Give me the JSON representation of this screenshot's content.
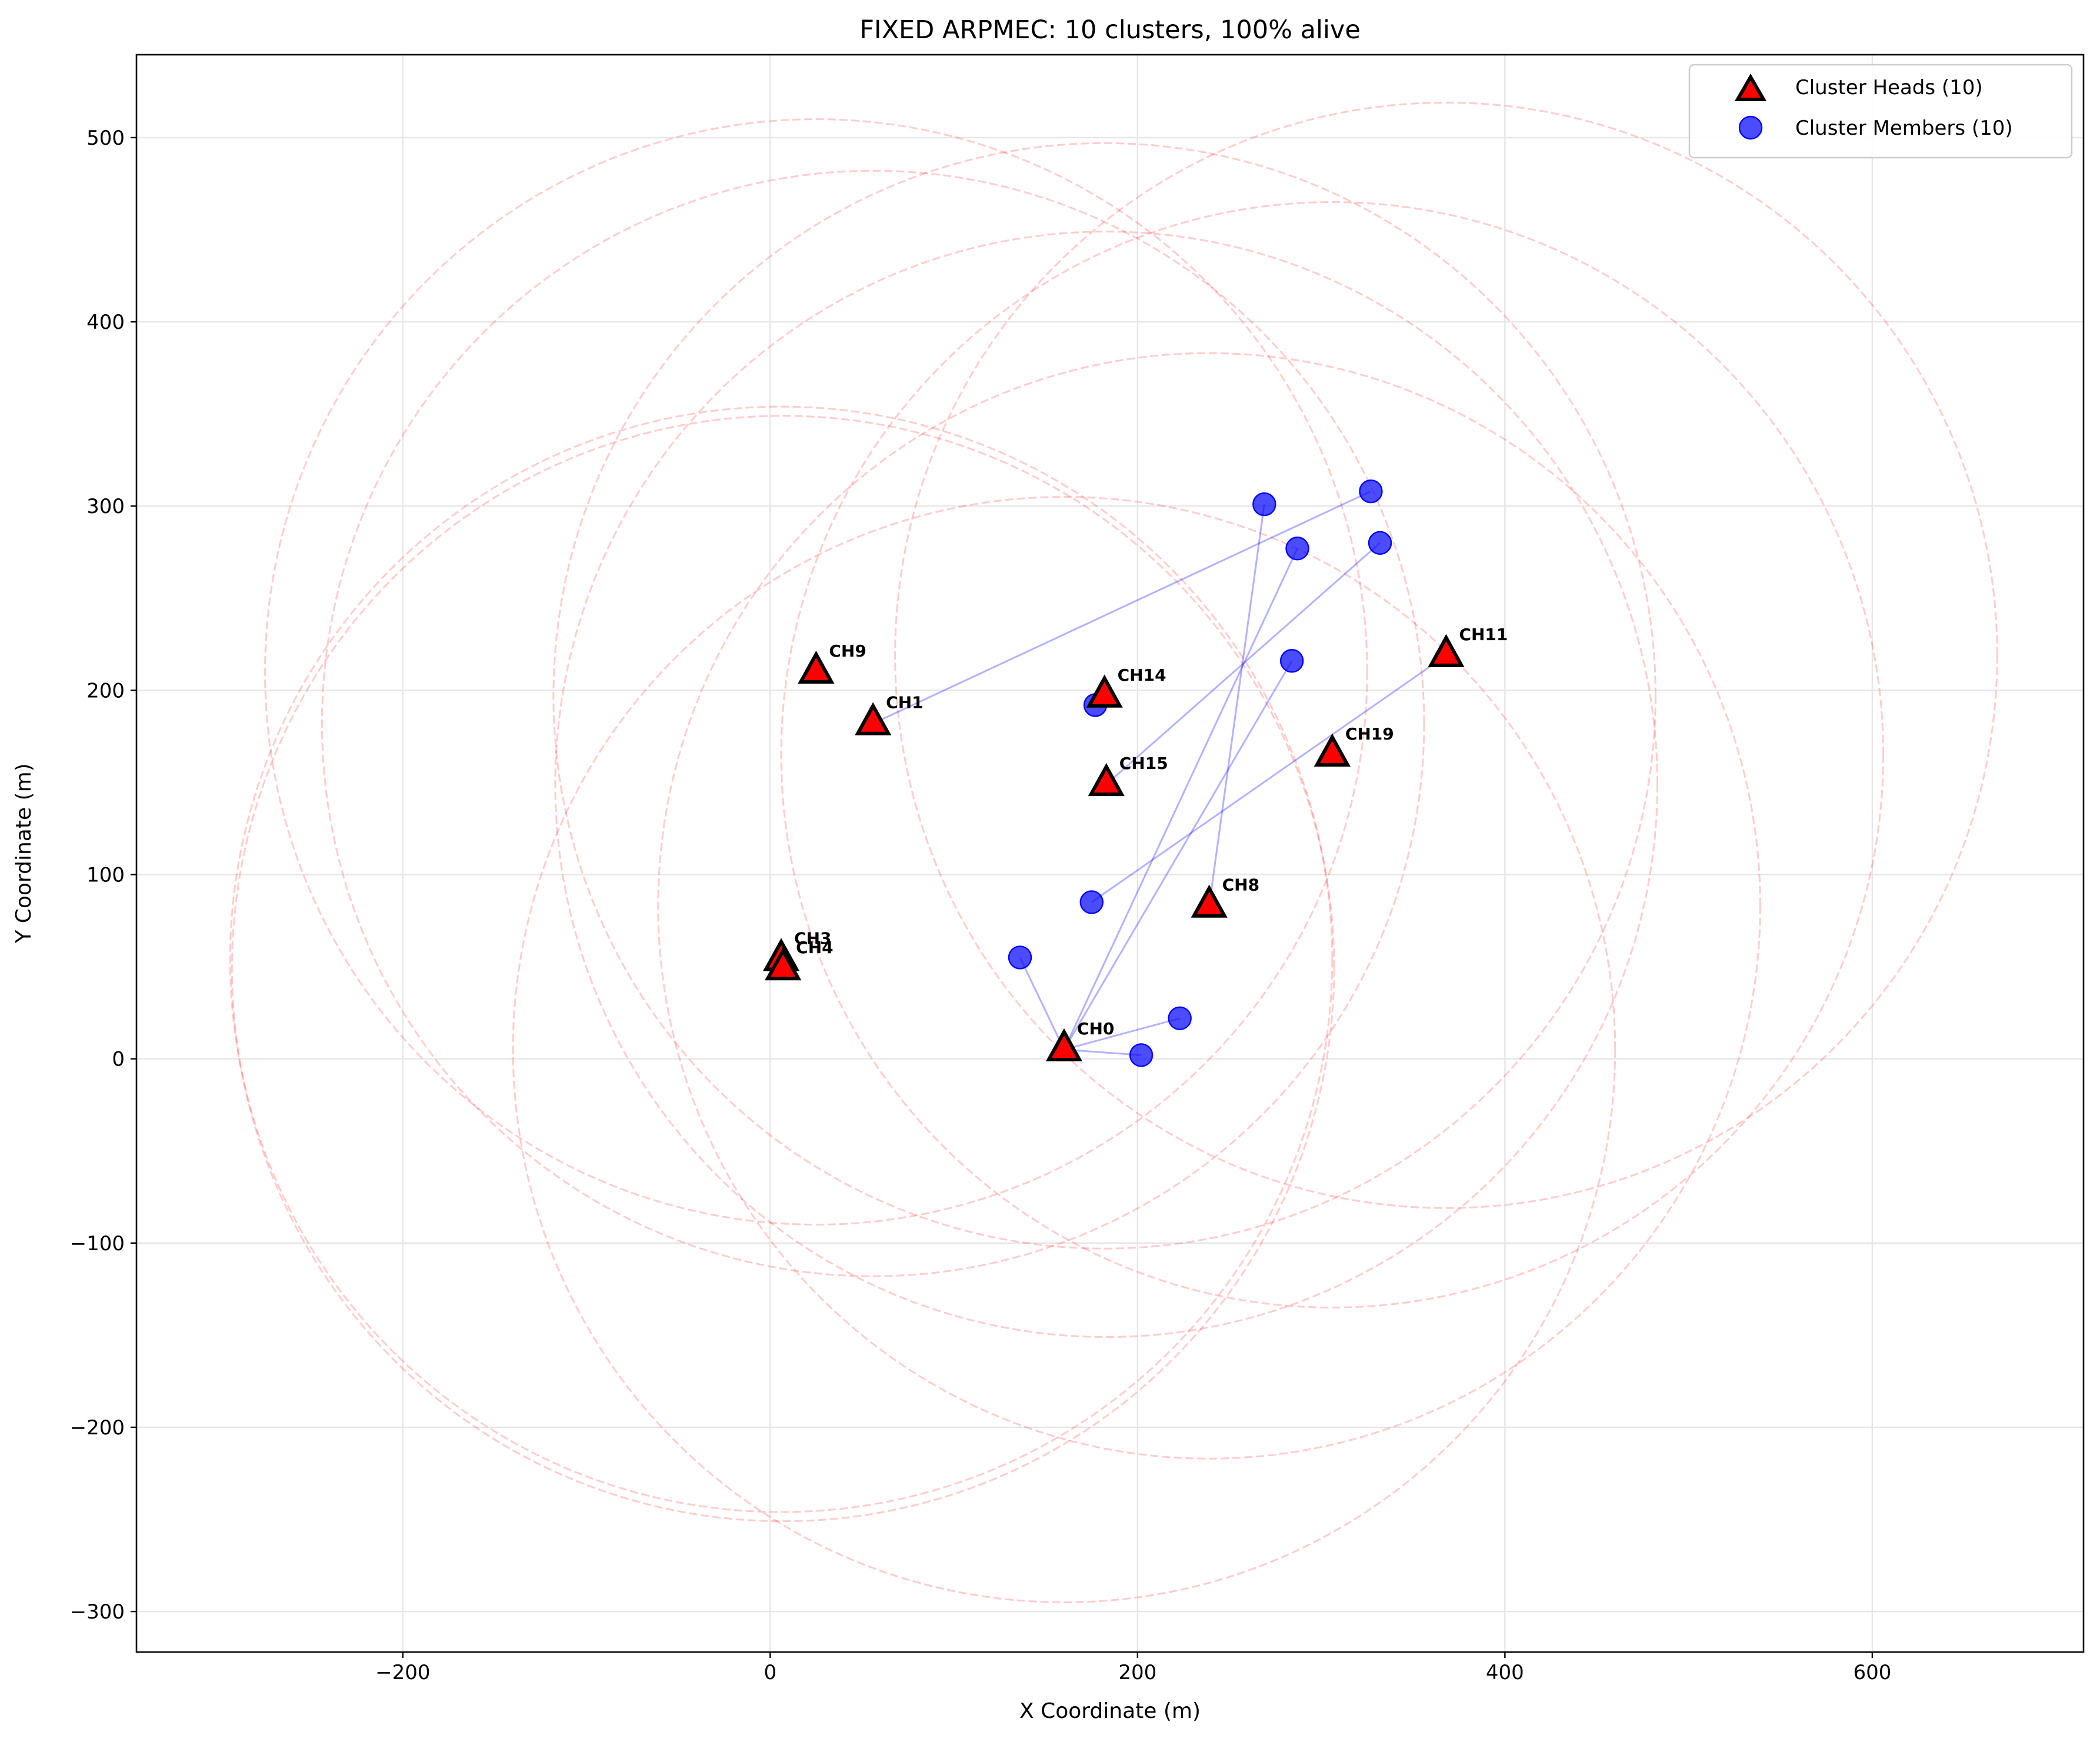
{
  "chart_data": {
    "type": "scatter",
    "title": "FIXED ARPMEC: 10 clusters, 100% alive",
    "xlabel": "X Coordinate (m)",
    "ylabel": "Y Coordinate (m)",
    "xlim": [
      -345,
      715
    ],
    "ylim": [
      -322,
      545
    ],
    "xticks": [
      -200,
      0,
      200,
      400,
      600
    ],
    "yticks": [
      -300,
      -200,
      -100,
      0,
      100,
      200,
      300,
      400,
      500
    ],
    "grid": true,
    "legend_position": "top-right",
    "colors": {
      "head_fill": "#ff0000",
      "head_edge": "#000000",
      "member": "#0000ff",
      "link": "#0000ff",
      "range": "#ff0000"
    },
    "legend": [
      {
        "label": "Cluster Heads (10)",
        "marker": "triangle"
      },
      {
        "label": "Cluster Members (10)",
        "marker": "circle"
      }
    ],
    "cluster_heads": [
      {
        "label": "CH0",
        "x": 160,
        "y": 5
      },
      {
        "label": "CH1",
        "x": 56,
        "y": 182
      },
      {
        "label": "CH3",
        "x": 6,
        "y": 54
      },
      {
        "label": "CH4",
        "x": 7,
        "y": 49
      },
      {
        "label": "CH8",
        "x": 239,
        "y": 83
      },
      {
        "label": "CH9",
        "x": 25,
        "y": 210
      },
      {
        "label": "CH11",
        "x": 368,
        "y": 219
      },
      {
        "label": "CH14",
        "x": 182,
        "y": 197
      },
      {
        "label": "CH15",
        "x": 183,
        "y": 149
      },
      {
        "label": "CH19",
        "x": 306,
        "y": 165
      }
    ],
    "cluster_members": [
      {
        "x": 269,
        "y": 301,
        "head": "CH8"
      },
      {
        "x": 327,
        "y": 308,
        "head": "CH1"
      },
      {
        "x": 287,
        "y": 277,
        "head": "CH0"
      },
      {
        "x": 332,
        "y": 280,
        "head": "CH15"
      },
      {
        "x": 284,
        "y": 216,
        "head": "CH0"
      },
      {
        "x": 177,
        "y": 192,
        "head": "CH14"
      },
      {
        "x": 175,
        "y": 85,
        "head": "CH11"
      },
      {
        "x": 136,
        "y": 55,
        "head": "CH0"
      },
      {
        "x": 223,
        "y": 22,
        "head": "CH0"
      },
      {
        "x": 202,
        "y": 2,
        "head": "CH0"
      }
    ],
    "communication_range": 300
  }
}
